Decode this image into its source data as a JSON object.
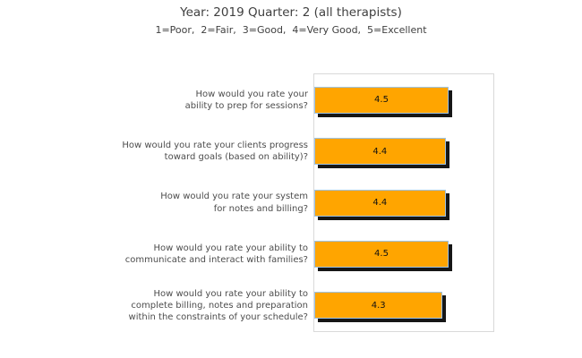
{
  "chart_data": {
    "type": "bar",
    "orientation": "horizontal",
    "title": "Year: 2019 Quarter: 2 (all therapists)",
    "subtitle": "1=Poor,  2=Fair,  3=Good,  4=Very Good,  5=Excellent",
    "xlim": [
      0,
      6
    ],
    "grid": false,
    "legend": false,
    "axis_ticks_visible": false,
    "categories": [
      "How would you rate your\nability to prep for sessions?",
      "How would you rate your clients progress\ntoward goals (based on ability)?",
      "How would you rate your system\nfor notes and billing?",
      "How would you rate your ability to\ncommunicate and interact with families?",
      "How would you rate your ability to\ncomplete billing, notes and preparation\nwithin the constraints of your schedule?"
    ],
    "values": [
      4.5,
      4.4,
      4.4,
      4.5,
      4.3
    ],
    "rating_scale": {
      "1": "Poor",
      "2": "Fair",
      "3": "Good",
      "4": "Very Good",
      "5": "Excellent"
    },
    "colors": {
      "bar_fill": "#FFA500",
      "bar_border": "#9DC3E6",
      "bar_shadow": "#161616",
      "plot_border": "#D9D9D9",
      "title_text": "#3F3F3F",
      "label_text": "#4D4D4D",
      "value_text": "#111111",
      "background": "#FFFFFF"
    }
  }
}
